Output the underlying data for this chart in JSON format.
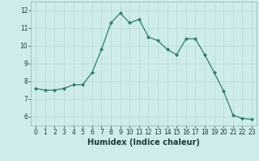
{
  "x": [
    0,
    1,
    2,
    3,
    4,
    5,
    6,
    7,
    8,
    9,
    10,
    11,
    12,
    13,
    14,
    15,
    16,
    17,
    18,
    19,
    20,
    21,
    22,
    23
  ],
  "y": [
    7.6,
    7.5,
    7.5,
    7.6,
    7.8,
    7.8,
    8.5,
    9.8,
    11.3,
    11.85,
    11.3,
    11.5,
    10.5,
    10.3,
    9.8,
    9.5,
    10.4,
    10.4,
    9.5,
    8.5,
    7.45,
    6.1,
    5.9,
    5.85
  ],
  "line_color": "#2e7d6e",
  "bg_color": "#ceecea",
  "grid_color": "#b8d8d5",
  "xlabel": "Humidex (Indice chaleur)",
  "ylim": [
    5.5,
    12.5
  ],
  "xlim": [
    -0.5,
    23.5
  ],
  "yticks": [
    6,
    7,
    8,
    9,
    10,
    11,
    12
  ],
  "xticks": [
    0,
    1,
    2,
    3,
    4,
    5,
    6,
    7,
    8,
    9,
    10,
    11,
    12,
    13,
    14,
    15,
    16,
    17,
    18,
    19,
    20,
    21,
    22,
    23
  ],
  "tick_fontsize": 5.5,
  "xlabel_fontsize": 7.0,
  "marker": "D",
  "marker_size": 2.0,
  "linewidth": 0.9
}
